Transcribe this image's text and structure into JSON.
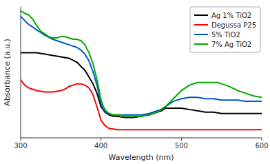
{
  "chart_data": {
    "type": "line",
    "xlabel": "Wavelength (nm)",
    "ylabel": "Absorbance (a.u.)",
    "xlim": [
      300,
      600
    ],
    "ylim": [
      0.05,
      1.02
    ],
    "xticks": [
      300,
      400,
      500,
      600
    ],
    "tick_labels": "x",
    "grid": false,
    "legend": "upper right",
    "series": [
      {
        "name": "Ag 1% TiO2",
        "color": "#000000",
        "x": [
          300,
          310,
          320,
          330,
          340,
          350,
          360,
          370,
          375,
          380,
          385,
          390,
          395,
          400,
          405,
          410,
          415,
          420,
          430,
          440,
          450,
          460,
          470,
          475,
          480,
          490,
          500,
          510,
          520,
          530,
          540,
          550,
          560,
          570,
          580,
          590,
          600
        ],
        "values": [
          0.68,
          0.68,
          0.68,
          0.67,
          0.66,
          0.65,
          0.64,
          0.61,
          0.58,
          0.55,
          0.5,
          0.45,
          0.38,
          0.28,
          0.24,
          0.22,
          0.21,
          0.21,
          0.2,
          0.2,
          0.21,
          0.22,
          0.24,
          0.25,
          0.27,
          0.27,
          0.27,
          0.26,
          0.25,
          0.24,
          0.24,
          0.23,
          0.23,
          0.23,
          0.23,
          0.23,
          0.23
        ]
      },
      {
        "name": "Degussa P25",
        "color": "#ff0000",
        "x": [
          300,
          305,
          310,
          320,
          330,
          340,
          350,
          355,
          360,
          365,
          370,
          375,
          380,
          385,
          390,
          395,
          400,
          405,
          410,
          420,
          430,
          440,
          450,
          460,
          470,
          480,
          490,
          500,
          510,
          520,
          530,
          540,
          550,
          560,
          570,
          580,
          590,
          600
        ],
        "values": [
          0.48,
          0.44,
          0.42,
          0.4,
          0.39,
          0.39,
          0.4,
          0.41,
          0.43,
          0.44,
          0.45,
          0.45,
          0.44,
          0.42,
          0.37,
          0.28,
          0.18,
          0.14,
          0.12,
          0.11,
          0.11,
          0.11,
          0.11,
          0.11,
          0.11,
          0.11,
          0.11,
          0.11,
          0.11,
          0.11,
          0.11,
          0.11,
          0.11,
          0.11,
          0.11,
          0.11,
          0.11,
          0.11
        ]
      },
      {
        "name": "5% TiO2",
        "color": "#0055cc",
        "x": [
          300,
          305,
          310,
          315,
          320,
          325,
          330,
          340,
          350,
          360,
          370,
          375,
          380,
          385,
          390,
          395,
          400,
          403,
          407,
          410,
          415,
          420,
          430,
          440,
          450,
          460,
          470,
          475,
          480,
          485,
          490,
          500,
          510,
          520,
          530,
          540,
          550,
          560,
          570,
          580,
          590,
          600
        ],
        "values": [
          0.95,
          0.92,
          0.89,
          0.87,
          0.85,
          0.83,
          0.81,
          0.78,
          0.76,
          0.74,
          0.72,
          0.7,
          0.67,
          0.62,
          0.54,
          0.44,
          0.3,
          0.26,
          0.24,
          0.23,
          0.22,
          0.22,
          0.22,
          0.22,
          0.22,
          0.23,
          0.25,
          0.26,
          0.28,
          0.3,
          0.32,
          0.34,
          0.35,
          0.35,
          0.34,
          0.34,
          0.33,
          0.33,
          0.33,
          0.32,
          0.32,
          0.32
        ]
      },
      {
        "name": "7% Ag TiO2",
        "color": "#00aa00",
        "x": [
          300,
          303,
          306,
          310,
          315,
          320,
          325,
          330,
          335,
          340,
          345,
          350,
          355,
          360,
          365,
          370,
          375,
          380,
          385,
          390,
          395,
          400,
          403,
          406,
          410,
          415,
          420,
          425,
          430,
          440,
          450,
          460,
          470,
          480,
          490,
          500,
          510,
          520,
          530,
          540,
          545,
          550,
          555,
          560,
          570,
          580,
          590,
          600
        ],
        "values": [
          0.99,
          0.98,
          0.97,
          0.96,
          0.93,
          0.88,
          0.84,
          0.82,
          0.8,
          0.79,
          0.79,
          0.8,
          0.8,
          0.79,
          0.78,
          0.78,
          0.77,
          0.74,
          0.68,
          0.6,
          0.48,
          0.33,
          0.28,
          0.25,
          0.23,
          0.22,
          0.22,
          0.22,
          0.21,
          0.21,
          0.21,
          0.22,
          0.24,
          0.28,
          0.34,
          0.4,
          0.44,
          0.46,
          0.46,
          0.46,
          0.46,
          0.45,
          0.44,
          0.43,
          0.4,
          0.38,
          0.36,
          0.35
        ]
      }
    ]
  }
}
